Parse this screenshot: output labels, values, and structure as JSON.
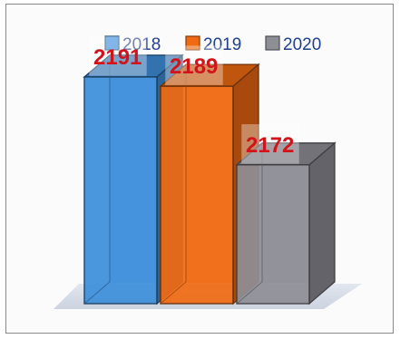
{
  "chart_data": {
    "type": "bar",
    "style": "3d",
    "categories": [
      "2018",
      "2019",
      "2020"
    ],
    "values": [
      2191,
      2189,
      2172
    ],
    "data_labels": [
      "2191",
      "2189",
      "2172"
    ],
    "title": "",
    "xlabel": "",
    "ylabel": "",
    "legend": {
      "position": "top",
      "entries": [
        "2018",
        "2019",
        "2020"
      ]
    },
    "colors": [
      "#3d8fdb",
      "#f06a12",
      "#8e8e96"
    ],
    "grid": false
  }
}
